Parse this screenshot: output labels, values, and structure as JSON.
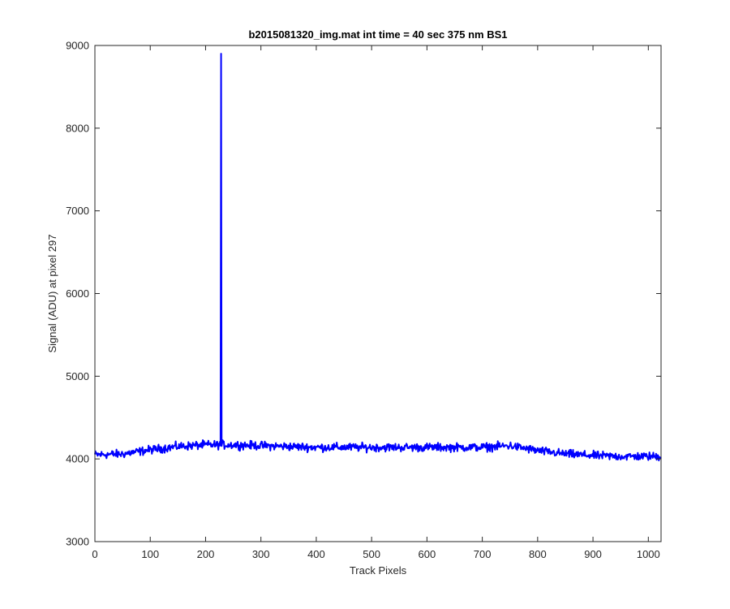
{
  "chart_data": {
    "type": "line",
    "title": "b2015081320_img.mat int time = 40 sec  375 nm BS1",
    "xlabel": "Track Pixels",
    "ylabel": "Signal (ADU) at pixel 297",
    "xlim": [
      0,
      1023
    ],
    "ylim": [
      3000,
      9000
    ],
    "xticks": [
      0,
      100,
      200,
      300,
      400,
      500,
      600,
      700,
      800,
      900,
      1000
    ],
    "yticks": [
      3000,
      4000,
      5000,
      6000,
      7000,
      8000,
      9000
    ],
    "grid": false,
    "legend": "none",
    "series_color": "#0000ff",
    "baseline_profile": {
      "x": [
        0,
        50,
        100,
        150,
        200,
        250,
        300,
        350,
        400,
        450,
        500,
        550,
        600,
        650,
        700,
        750,
        800,
        850,
        900,
        950,
        1023
      ],
      "y": [
        4050,
        4060,
        4110,
        4150,
        4170,
        4170,
        4160,
        4150,
        4140,
        4140,
        4140,
        4140,
        4140,
        4140,
        4140,
        4160,
        4100,
        4060,
        4040,
        4030,
        4030
      ]
    },
    "noise_amplitude": 55,
    "spike": {
      "x": 228,
      "y": 8900
    }
  }
}
